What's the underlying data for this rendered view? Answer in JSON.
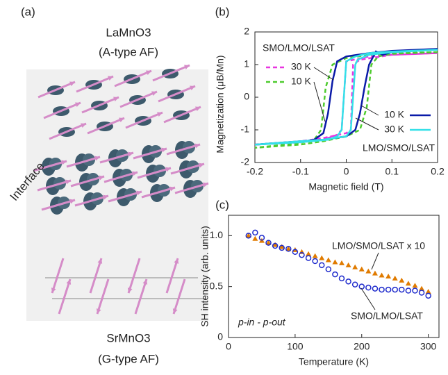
{
  "illustration": {
    "panel_label": "(a)",
    "top_material": "LaMnO3",
    "top_order": "(A-type AF)",
    "interface_label": "Interface",
    "bottom_material": "SrMnO3",
    "bottom_order": "(G-type AF)"
  },
  "chart_data": [
    {
      "type": "line",
      "panel_label": "(b)",
      "x_label": "Magnetic field (T)",
      "y_label": "Magnetization (μB/Mn)",
      "xlim": [
        -0.2,
        0.2
      ],
      "xticks": [
        -0.2,
        -0.1,
        0,
        0.1,
        0.2
      ],
      "ylim": [
        -2,
        2
      ],
      "yticks": [
        -2,
        -1,
        0,
        1,
        2
      ],
      "annotations": [
        "SMO/LMO/LSAT",
        "LMO/SMO/LSAT"
      ],
      "series": [
        {
          "name": "30 K",
          "color": "#e835e0",
          "line_style": "dashed",
          "x": [
            0.2,
            0.1,
            0.05,
            0,
            -0.01,
            -0.02,
            -0.05,
            -0.1,
            -0.2,
            -0.1,
            -0.05,
            0,
            0.01,
            0.015,
            0.03,
            0.1,
            0.2
          ],
          "values": [
            1.35,
            1.3,
            1.25,
            1.1,
            -1.0,
            -1.15,
            -1.3,
            -1.38,
            -1.45,
            -1.35,
            -1.25,
            -1.1,
            -1.0,
            1.0,
            1.15,
            1.3,
            1.35
          ]
        },
        {
          "name": "10 K",
          "color": "#4ecb2e",
          "line_style": "dashed",
          "x": [
            0.2,
            0.1,
            0.05,
            0,
            -0.03,
            -0.045,
            -0.055,
            -0.07,
            -0.1,
            -0.2,
            -0.1,
            -0.05,
            0,
            0.03,
            0.045,
            0.055,
            0.07,
            0.1,
            0.2
          ],
          "values": [
            1.38,
            1.35,
            1.3,
            1.2,
            1.0,
            0.3,
            -1.0,
            -1.3,
            -1.4,
            -1.55,
            -1.45,
            -1.35,
            -1.2,
            -1.0,
            -0.3,
            1.0,
            1.25,
            1.33,
            1.38
          ]
        },
        {
          "name": "10 K",
          "color": "#0a1aa8",
          "line_style": "solid",
          "x": [
            0.2,
            0.1,
            0.05,
            0,
            -0.02,
            -0.03,
            -0.04,
            -0.05,
            -0.07,
            -0.1,
            -0.2,
            -0.1,
            -0.05,
            0,
            0.02,
            0.03,
            0.04,
            0.05,
            0.065,
            0.08,
            0.1,
            0.2
          ],
          "values": [
            1.48,
            1.42,
            1.35,
            1.25,
            1.1,
            0.5,
            -0.5,
            -1.1,
            -1.3,
            -1.37,
            -1.45,
            -1.35,
            -1.3,
            -1.2,
            -1.0,
            -0.5,
            0.3,
            1.0,
            1.4,
            1.3,
            1.38,
            1.48
          ]
        },
        {
          "name": "30 K",
          "color": "#33e0e8",
          "line_style": "solid",
          "x": [
            0.2,
            0.1,
            0.05,
            0.02,
            0,
            -0.01,
            -0.02,
            -0.04,
            -0.1,
            -0.2,
            -0.1,
            -0.05,
            0,
            0.01,
            0.02,
            0.025,
            0.05,
            0.1,
            0.2
          ],
          "values": [
            1.45,
            1.4,
            1.35,
            1.25,
            1.1,
            -1.0,
            -1.2,
            -1.3,
            -1.38,
            -1.45,
            -1.35,
            -1.3,
            -1.2,
            -1.0,
            1.0,
            1.15,
            1.3,
            1.38,
            1.45
          ]
        }
      ]
    },
    {
      "type": "scatter",
      "panel_label": "(c)",
      "x_label": "Temperature (K)",
      "y_label": "SH intensity (arb. units)",
      "xlim": [
        0,
        316
      ],
      "xticks": [
        0,
        100,
        200,
        300
      ],
      "ylim": [
        0,
        1.2
      ],
      "yticks": [
        0,
        0.5,
        {
          "value": 1,
          "label": "1.0"
        }
      ],
      "annotations": [
        "p-in - p-out"
      ],
      "x": [
        30,
        40,
        50,
        60,
        70,
        80,
        90,
        100,
        110,
        120,
        130,
        140,
        150,
        160,
        170,
        180,
        190,
        200,
        210,
        220,
        230,
        240,
        250,
        260,
        270,
        280,
        290,
        300
      ],
      "series": [
        {
          "name": "LMO/SMO/LSAT x 10",
          "color": "#e07b00",
          "marker": "triangle",
          "values": [
            1.0,
            0.97,
            0.95,
            0.93,
            0.91,
            0.89,
            0.87,
            0.86,
            0.84,
            0.82,
            0.8,
            0.78,
            0.76,
            0.74,
            0.73,
            0.71,
            0.69,
            0.67,
            0.65,
            0.63,
            0.61,
            0.6,
            0.58,
            0.56,
            0.53,
            0.51,
            0.48,
            0.45
          ]
        },
        {
          "name": "SMO/LMO/LSAT",
          "color": "#1f2bcc",
          "marker": "circle",
          "values": [
            1.0,
            1.03,
            0.98,
            0.93,
            0.9,
            0.88,
            0.87,
            0.84,
            0.81,
            0.78,
            0.75,
            0.71,
            0.67,
            0.62,
            0.58,
            0.55,
            0.52,
            0.5,
            0.49,
            0.48,
            0.47,
            0.47,
            0.47,
            0.47,
            0.46,
            0.46,
            0.44,
            0.41
          ]
        }
      ]
    }
  ]
}
